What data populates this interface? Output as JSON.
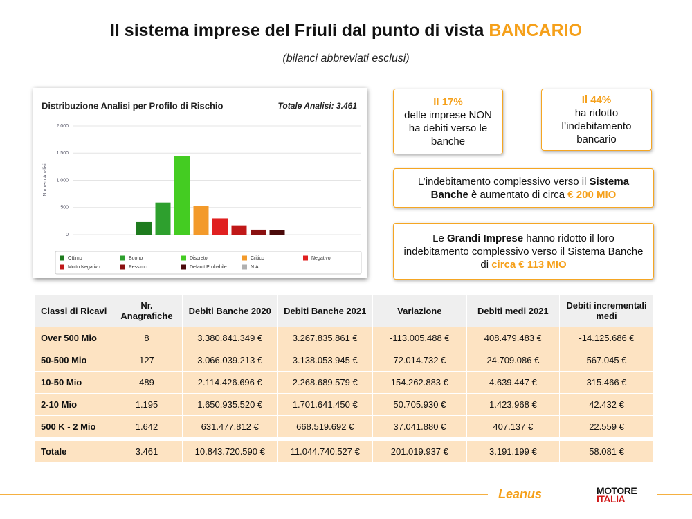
{
  "header": {
    "title": "Il sistema imprese del Friuli dal punto di vista",
    "title_highlight": "BANCARIO",
    "subtitle": "(bilanci abbreviati esclusi)"
  },
  "chart_data": {
    "type": "bar",
    "title": "Distribuzione Analisi per Profilo di Rischio",
    "annotation": "Totale Analisi: 3.461",
    "y_label": "Numero Analisi",
    "categories": [
      "Ottimo",
      "Buono",
      "Discreto",
      "Critico",
      "Negativo",
      "Molto Negativo",
      "Pessimo",
      "Default Probabile",
      "N.A."
    ],
    "values": [
      230,
      590,
      1450,
      530,
      300,
      170,
      90,
      80,
      0
    ],
    "colors": [
      "#1e7b1e",
      "#2ea02e",
      "#44cc22",
      "#f39a2a",
      "#e02020",
      "#c01818",
      "#8a1010",
      "#4a0a0a",
      "#b0b0b0"
    ],
    "ylim": [
      0,
      2000
    ],
    "yticks": [
      0,
      500,
      {
        "value": 1000,
        "label": "1.000"
      },
      {
        "value": 1500,
        "label": "1.500"
      },
      {
        "value": 2000,
        "label": "2.000"
      }
    ],
    "grid": true
  },
  "callouts": [
    {
      "parts": [
        {
          "text": "Il 17%",
          "style": "highlight"
        },
        {
          "text": "delle imprese NON ha debiti verso le banche",
          "style": "plain"
        }
      ]
    },
    {
      "parts": [
        {
          "text": "Il 44%",
          "style": "highlight"
        },
        {
          "text": "ha ridotto l’indebitamento bancario",
          "style": "plain"
        }
      ]
    },
    {
      "parts": [
        {
          "text": "L’indebitamento complessivo verso il",
          "style": "plain"
        },
        {
          "text": "Sistema Banche",
          "style": "bold"
        },
        {
          "text": "è aumentato di circa",
          "style": "plain"
        },
        {
          "text": "€ 200 MIO",
          "style": "highlight"
        }
      ]
    },
    {
      "parts": [
        {
          "text": "Le",
          "style": "plain"
        },
        {
          "text": "Grandi Imprese",
          "style": "bold"
        },
        {
          "text": "hanno ridotto il loro indebitamento complessivo verso il Sistema Banche di",
          "style": "plain"
        },
        {
          "text": "circa € 113 MIO",
          "style": "highlight"
        }
      ]
    }
  ],
  "table": {
    "columns": [
      "Classi di Ricavi",
      "Nr. Anagrafiche",
      "Debiti Banche 2020",
      "Debiti Banche 2021",
      "Variazione",
      "Debiti medi 2021",
      "Debiti incrementali medi"
    ],
    "rows": [
      [
        "Over 500 Mio",
        "8",
        "3.380.841.349 €",
        "3.267.835.861 €",
        "-113.005.488 €",
        "408.479.483 €",
        "-14.125.686 €"
      ],
      [
        "50-500 Mio",
        "127",
        "3.066.039.213 €",
        "3.138.053.945 €",
        "72.014.732 €",
        "24.709.086 €",
        "567.045 €"
      ],
      [
        "10-50 Mio",
        "489",
        "2.114.426.696 €",
        "2.268.689.579 €",
        "154.262.883 €",
        "4.639.447 €",
        "315.466 €"
      ],
      [
        "2-10 Mio",
        "1.195",
        "1.650.935.520 €",
        "1.701.641.450 €",
        "50.705.930 €",
        "1.423.968 €",
        "42.432 €"
      ],
      [
        "500 K - 2 Mio",
        "1.642",
        "631.477.812 €",
        "668.519.692 €",
        "37.041.880 €",
        "407.137 €",
        "22.559 €"
      ]
    ],
    "total": [
      "Totale",
      "3.461",
      "10.843.720.590 €",
      "11.044.740.527 €",
      "201.019.937 €",
      "3.191.199 €",
      "58.081 €"
    ]
  },
  "footer": {
    "logos": [
      "Leanus",
      "MOTORE",
      "ITALIA"
    ]
  }
}
